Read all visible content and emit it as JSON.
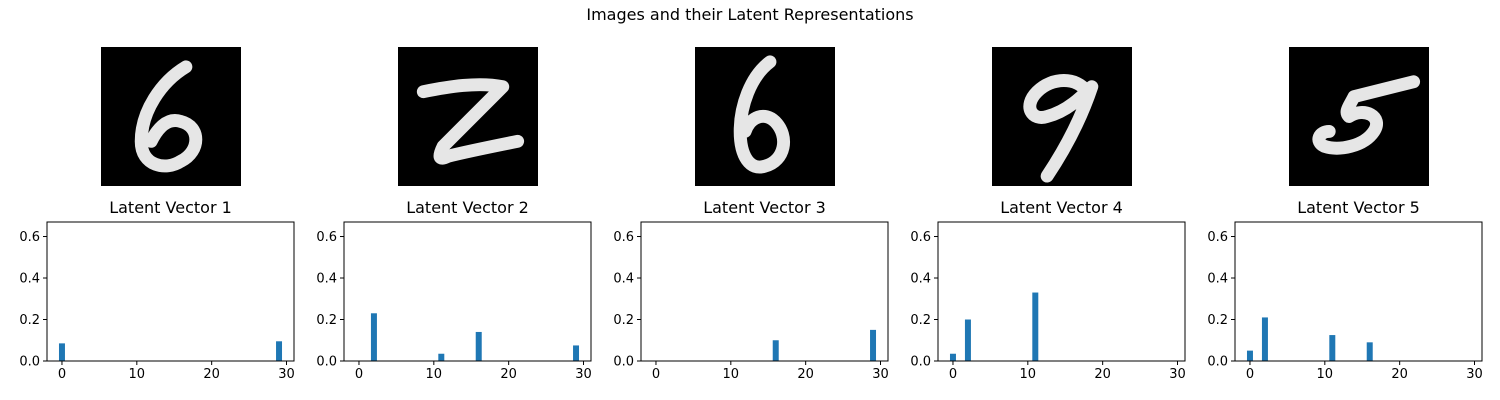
{
  "figure_title": "Images and their Latent Representations",
  "digits": [
    "6",
    "2",
    "6",
    "9",
    "5"
  ],
  "bar_color": "#1f77b4",
  "chart_data": [
    {
      "type": "bar",
      "title": "Latent Vector 1",
      "xlim": [
        -2,
        31
      ],
      "ylim": [
        0,
        0.67
      ],
      "xticks": [
        0,
        10,
        20,
        30
      ],
      "yticks": [
        0.0,
        0.2,
        0.4,
        0.6
      ],
      "x": [
        0,
        29
      ],
      "values": [
        0.085,
        0.095
      ]
    },
    {
      "type": "bar",
      "title": "Latent Vector 2",
      "xlim": [
        -2,
        31
      ],
      "ylim": [
        0,
        0.67
      ],
      "xticks": [
        0,
        10,
        20,
        30
      ],
      "yticks": [
        0.0,
        0.2,
        0.4,
        0.6
      ],
      "x": [
        2,
        11,
        16,
        29
      ],
      "values": [
        0.23,
        0.035,
        0.14,
        0.075
      ]
    },
    {
      "type": "bar",
      "title": "Latent Vector 3",
      "xlim": [
        -2,
        31
      ],
      "ylim": [
        0,
        0.67
      ],
      "xticks": [
        0,
        10,
        20,
        30
      ],
      "yticks": [
        0.0,
        0.2,
        0.4,
        0.6
      ],
      "x": [
        16,
        29
      ],
      "values": [
        0.1,
        0.15
      ]
    },
    {
      "type": "bar",
      "title": "Latent Vector 4",
      "xlim": [
        -2,
        31
      ],
      "ylim": [
        0,
        0.67
      ],
      "xticks": [
        0,
        10,
        20,
        30
      ],
      "yticks": [
        0.0,
        0.2,
        0.4,
        0.6
      ],
      "x": [
        0,
        2,
        11
      ],
      "values": [
        0.035,
        0.2,
        0.33
      ]
    },
    {
      "type": "bar",
      "title": "Latent Vector 5",
      "xlim": [
        -2,
        31
      ],
      "ylim": [
        0,
        0.67
      ],
      "xticks": [
        0,
        10,
        20,
        30
      ],
      "yticks": [
        0.0,
        0.2,
        0.4,
        0.6
      ],
      "x": [
        0,
        2,
        11,
        16
      ],
      "values": [
        0.05,
        0.21,
        0.125,
        0.09
      ]
    }
  ]
}
